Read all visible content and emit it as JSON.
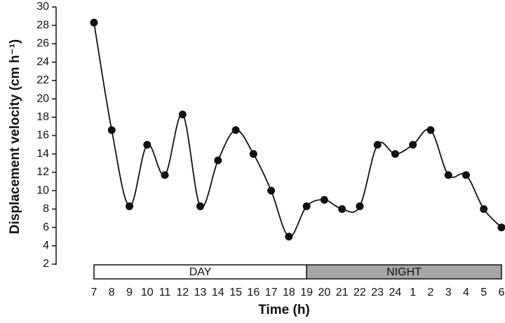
{
  "chart_data": {
    "type": "line",
    "x_label": "Time (h)",
    "y_label": "Displacement velocity (cm h⁻¹)",
    "categories": [
      "7",
      "8",
      "9",
      "10",
      "11",
      "12",
      "13",
      "14",
      "15",
      "16",
      "17",
      "18",
      "19",
      "20",
      "21",
      "22",
      "23",
      "24",
      "1",
      "2",
      "3",
      "4",
      "5",
      "6"
    ],
    "values": [
      28.3,
      16.6,
      8.3,
      15,
      11.7,
      18.3,
      8.3,
      13.3,
      16.6,
      14,
      10,
      5,
      8.3,
      9,
      8,
      8.3,
      15,
      14,
      15,
      16.6,
      11.7,
      11.7,
      8,
      6
    ],
    "color": "#111111",
    "ylim": [
      2,
      30
    ],
    "yticks": [
      2,
      4,
      6,
      8,
      10,
      12,
      14,
      16,
      18,
      20,
      22,
      24,
      26,
      28,
      30
    ],
    "periods": [
      {
        "label": "DAY",
        "from": "7",
        "to": "19",
        "color": "#ffffff"
      },
      {
        "label": "NIGHT",
        "from": "19",
        "to": "6",
        "color": "#a6a6a6"
      }
    ]
  }
}
